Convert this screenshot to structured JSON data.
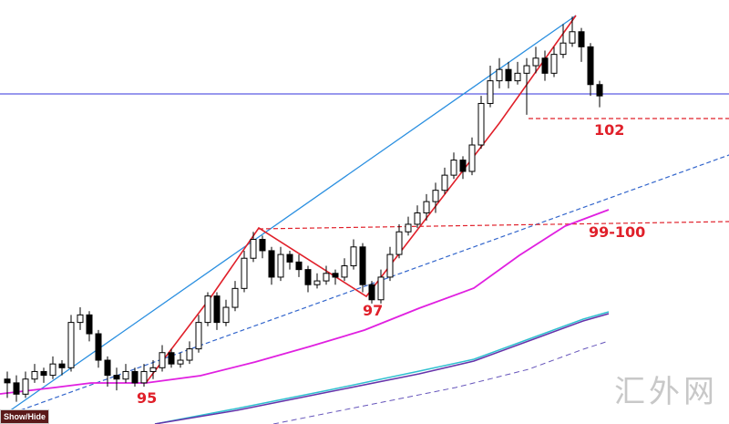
{
  "chart_data": {
    "type": "candlestick",
    "ylim": [
      93.91,
      105.14
    ],
    "open": [
      95.1,
      95.0,
      94.7,
      95.1,
      95.3,
      95.2,
      95.5,
      95.4,
      96.6,
      96.8,
      96.3,
      95.6,
      95.2,
      95.1,
      95.3,
      95.0,
      95.3,
      95.4,
      95.8,
      95.5,
      95.6,
      95.9,
      96.6,
      97.3,
      96.6,
      97.0,
      97.5,
      98.3,
      98.8,
      98.5,
      97.8,
      98.4,
      98.2,
      98.0,
      97.6,
      97.7,
      97.9,
      97.8,
      98.1,
      98.6,
      97.6,
      97.2,
      97.8,
      98.4,
      99.0,
      99.2,
      99.5,
      99.8,
      100.1,
      100.5,
      100.9,
      100.6,
      101.3,
      102.4,
      103.0,
      103.3,
      103.0,
      103.2,
      103.4,
      103.6,
      103.2,
      103.7,
      104.0,
      104.3,
      103.9,
      102.9
    ],
    "high": [
      95.3,
      95.2,
      95.3,
      95.5,
      95.4,
      95.7,
      95.6,
      96.8,
      97.0,
      96.9,
      96.4,
      95.7,
      95.4,
      95.5,
      95.4,
      95.5,
      95.6,
      96.0,
      95.9,
      95.8,
      96.1,
      96.8,
      97.4,
      97.4,
      97.2,
      97.7,
      98.5,
      99.0,
      98.9,
      98.6,
      98.6,
      98.5,
      98.4,
      98.1,
      97.9,
      98.1,
      98.0,
      98.3,
      98.8,
      98.7,
      97.7,
      98.0,
      98.6,
      99.2,
      99.4,
      99.7,
      100.0,
      100.3,
      100.7,
      101.1,
      101.0,
      101.5,
      102.6,
      103.4,
      103.6,
      103.5,
      103.5,
      103.6,
      103.9,
      103.8,
      103.9,
      104.5,
      104.7,
      104.4,
      104.0,
      103.0
    ],
    "low": [
      94.6,
      94.5,
      94.6,
      95.0,
      95.0,
      95.1,
      95.2,
      95.3,
      96.4,
      96.1,
      95.4,
      94.9,
      94.8,
      95.0,
      94.9,
      94.9,
      95.1,
      95.3,
      95.4,
      95.4,
      95.5,
      95.8,
      96.5,
      96.4,
      96.5,
      96.9,
      97.4,
      98.2,
      98.3,
      97.6,
      97.7,
      98.0,
      97.8,
      97.4,
      97.5,
      97.6,
      97.6,
      97.7,
      98.0,
      97.4,
      97.1,
      97.1,
      97.7,
      98.3,
      98.9,
      99.1,
      99.3,
      99.5,
      100.0,
      100.4,
      100.4,
      100.5,
      101.2,
      102.3,
      102.8,
      102.8,
      102.9,
      102.1,
      103.2,
      103.0,
      103.1,
      103.6,
      103.9,
      103.5,
      102.6,
      102.3
    ],
    "close": [
      95.0,
      94.7,
      95.1,
      95.3,
      95.2,
      95.5,
      95.4,
      96.6,
      96.8,
      96.3,
      95.6,
      95.2,
      95.1,
      95.3,
      95.0,
      95.3,
      95.4,
      95.8,
      95.5,
      95.6,
      95.9,
      96.6,
      97.3,
      96.6,
      97.0,
      97.5,
      98.3,
      98.8,
      98.5,
      97.8,
      98.4,
      98.2,
      98.0,
      97.6,
      97.7,
      97.9,
      97.8,
      98.1,
      98.6,
      97.6,
      97.2,
      97.8,
      98.4,
      99.0,
      99.2,
      99.5,
      99.8,
      100.1,
      100.5,
      100.9,
      100.6,
      101.3,
      102.4,
      103.0,
      103.3,
      103.0,
      103.2,
      103.4,
      103.6,
      103.2,
      103.7,
      104.0,
      104.3,
      103.9,
      102.9,
      102.6
    ],
    "annotations": [
      "102",
      "99-100",
      "97",
      "95"
    ],
    "button": "Show/Hide",
    "watermark": "汇外网"
  }
}
